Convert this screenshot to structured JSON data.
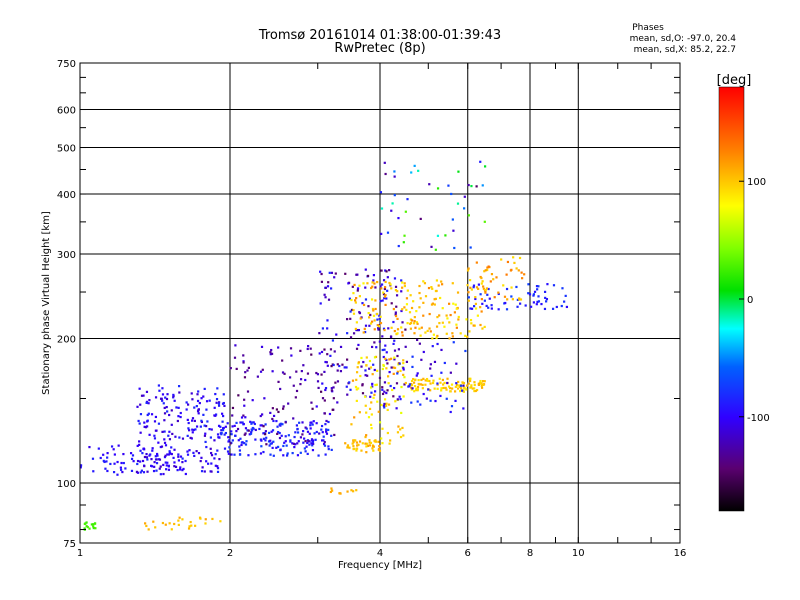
{
  "header": {
    "title_line1": "Tromsø 20161014 01:38:00-01:39:43",
    "title_line2": "RwPretec (8p)"
  },
  "phases": {
    "heading": "Phases",
    "line_o": "mean, sd,O: -97.0, 20.4",
    "line_x": "mean, sd,X:  85.2, 22.7"
  },
  "colorbar": {
    "label": "[deg]",
    "ticks": [
      {
        "value": 100,
        "label": "100"
      },
      {
        "value": 0,
        "label": "0"
      },
      {
        "value": -100,
        "label": "-100"
      }
    ],
    "range": [
      -180,
      180
    ]
  },
  "chart_data": {
    "type": "scatter",
    "title": "Tromsø 20161014 01:38:00-01:39:43",
    "subtitle": "RwPretec (8p)",
    "xlabel": "Frequency [MHz]",
    "ylabel": "Stationary phase Virtual Height [km]",
    "xscale": "log",
    "yscale": "log",
    "xlim": [
      1,
      16
    ],
    "ylim": [
      75,
      750
    ],
    "xticks": [
      {
        "value": 1,
        "label": "1"
      },
      {
        "value": 2,
        "label": "2"
      },
      {
        "value": 4,
        "label": "4"
      },
      {
        "value": 6,
        "label": "6"
      },
      {
        "value": 8,
        "label": "8"
      },
      {
        "value": 10,
        "label": "10"
      },
      {
        "value": 16,
        "label": "16"
      }
    ],
    "xgrid": [
      1,
      2,
      4,
      6,
      8,
      10,
      16
    ],
    "yticks": [
      {
        "value": 75,
        "label": "75"
      },
      {
        "value": 100,
        "label": "100"
      },
      {
        "value": 200,
        "label": "200"
      },
      {
        "value": 300,
        "label": "300"
      },
      {
        "value": 400,
        "label": "400"
      },
      {
        "value": 500,
        "label": "500"
      },
      {
        "value": 600,
        "label": "600"
      },
      {
        "value": 750,
        "label": "750"
      }
    ],
    "ygrid": [
      75,
      100,
      200,
      300,
      400,
      500,
      600,
      750
    ],
    "colorscale": "rainbow",
    "color_quantity": "phase [deg]",
    "color_range": [
      -180,
      180
    ],
    "grid": true,
    "point_clusters": [
      {
        "f_min": 1.0,
        "f_max": 1.65,
        "h_min": 104,
        "h_max": 120,
        "phase_min": -110,
        "phase_max": -85,
        "n": 80
      },
      {
        "f_min": 1.3,
        "f_max": 1.95,
        "h_min": 105,
        "h_max": 160,
        "phase_min": -120,
        "phase_max": -80,
        "n": 220
      },
      {
        "f_min": 1.9,
        "f_max": 3.2,
        "h_min": 114,
        "h_max": 135,
        "phase_min": -105,
        "phase_max": -70,
        "n": 180
      },
      {
        "f_min": 2.0,
        "f_max": 3.3,
        "h_min": 120,
        "h_max": 195,
        "phase_min": -150,
        "phase_max": -100,
        "n": 120
      },
      {
        "f_min": 3.0,
        "f_max": 4.5,
        "h_min": 150,
        "h_max": 280,
        "phase_min": -150,
        "phase_max": -80,
        "n": 180
      },
      {
        "f_min": 3.4,
        "f_max": 4.0,
        "h_min": 116,
        "h_max": 123,
        "phase_min": 90,
        "phase_max": 115,
        "n": 45
      },
      {
        "f_min": 3.5,
        "f_max": 4.5,
        "h_min": 120,
        "h_max": 185,
        "phase_min": 70,
        "phase_max": 120,
        "n": 90
      },
      {
        "f_min": 3.5,
        "f_max": 6.5,
        "h_min": 200,
        "h_max": 265,
        "phase_min": 80,
        "phase_max": 125,
        "n": 180
      },
      {
        "f_min": 4.5,
        "f_max": 6.5,
        "h_min": 155,
        "h_max": 165,
        "phase_min": 85,
        "phase_max": 110,
        "n": 110
      },
      {
        "f_min": 4.0,
        "f_max": 6.0,
        "h_min": 140,
        "h_max": 200,
        "phase_min": -130,
        "phase_max": -70,
        "n": 60
      },
      {
        "f_min": 6.0,
        "f_max": 9.5,
        "h_min": 230,
        "h_max": 260,
        "phase_min": -100,
        "phase_max": -70,
        "n": 60
      },
      {
        "f_min": 6.0,
        "f_max": 7.8,
        "h_min": 240,
        "h_max": 300,
        "phase_min": 90,
        "phase_max": 130,
        "n": 50
      },
      {
        "f_min": 4.0,
        "f_max": 6.5,
        "h_min": 300,
        "h_max": 470,
        "phase_min": -150,
        "phase_max": 40,
        "n": 45
      },
      {
        "f_min": 1.35,
        "f_max": 2.0,
        "h_min": 80,
        "h_max": 85,
        "phase_min": 95,
        "phase_max": 115,
        "n": 25
      },
      {
        "f_min": 1.02,
        "f_max": 1.08,
        "h_min": 80,
        "h_max": 83,
        "phase_min": 20,
        "phase_max": 30,
        "n": 15
      },
      {
        "f_min": 3.1,
        "f_max": 3.6,
        "h_min": 95,
        "h_max": 98,
        "phase_min": 100,
        "phase_max": 120,
        "n": 10
      }
    ]
  }
}
